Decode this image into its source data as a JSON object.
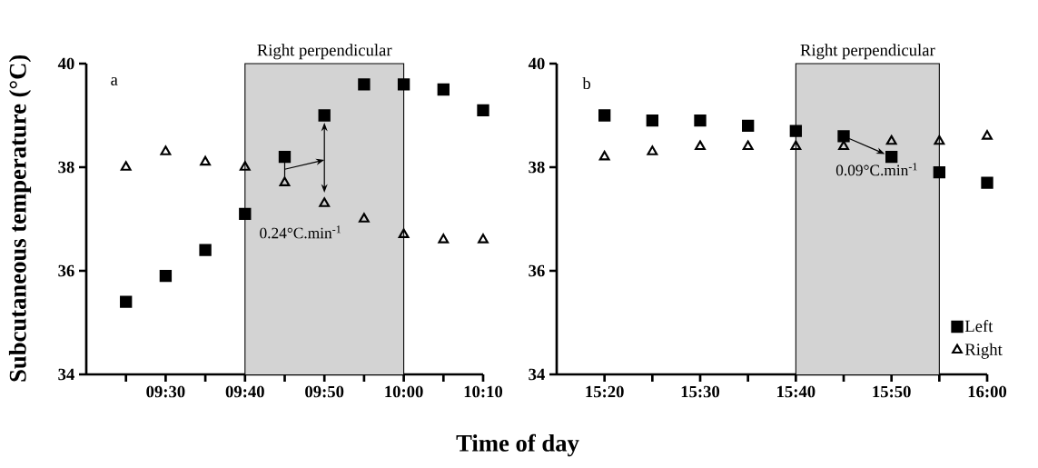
{
  "chart_data": [
    {
      "type": "scatter",
      "title": "a",
      "ylabel": "Subcutaneous temperature (°C)",
      "xlabel": "Time of day",
      "x": [
        9.416667,
        9.5,
        9.583333,
        9.666667,
        9.75,
        9.833333,
        9.916667,
        10,
        10.083333,
        10.166667
      ],
      "series": [
        {
          "color": "#000000",
          "marker": "square",
          "values": [
            35.4,
            35.9,
            36.4,
            37.1,
            38.2,
            39.0,
            39.6,
            39.6,
            39.5,
            39.1
          ]
        },
        {
          "color": "#000000",
          "marker": "triangle",
          "values": [
            38.0,
            38.3,
            38.1,
            38.0,
            37.7,
            37.3,
            37.0,
            36.7,
            36.6,
            36.6
          ]
        }
      ],
      "xlim": [
        9.333333,
        10.166667
      ],
      "ylim": [
        34,
        40
      ],
      "xticks": [
        {
          "value": 9.416667,
          "label": null
        },
        {
          "value": 9.5,
          "label": "09:30"
        },
        {
          "value": 9.583333,
          "label": null
        },
        {
          "value": 9.666667,
          "label": "09:40"
        },
        {
          "value": 9.75,
          "label": null
        },
        {
          "value": 9.833333,
          "label": "09:50"
        },
        {
          "value": 9.916667,
          "label": null
        },
        {
          "value": 10,
          "label": "10:00"
        },
        {
          "value": 10.083333,
          "label": null
        },
        {
          "value": 10.166667,
          "label": "10:10"
        }
      ],
      "yticks": [
        34,
        36,
        38,
        40
      ],
      "bands": [
        {
          "axis": "x",
          "from": 9.666667,
          "to": 10,
          "label": "Right perpendicular",
          "color": "#d3d3d3"
        }
      ],
      "annotations": [
        "0.24°C.min$^{-1}$"
      ]
    },
    {
      "type": "scatter",
      "title": "b",
      "x": [
        15.333333,
        15.416667,
        15.5,
        15.583333,
        15.666667,
        15.75,
        15.833333,
        15.916667,
        16
      ],
      "series": [
        {
          "name": "Left",
          "color": "#000000",
          "marker": "square",
          "values": [
            39.0,
            38.9,
            38.9,
            38.8,
            38.7,
            38.6,
            38.2,
            37.9,
            37.7
          ]
        },
        {
          "name": "Right",
          "color": "#000000",
          "marker": "triangle",
          "values": [
            38.2,
            38.3,
            38.4,
            38.4,
            38.4,
            38.4,
            38.5,
            38.5,
            38.6
          ]
        }
      ],
      "xlim": [
        15.25,
        16
      ],
      "ylim": [
        34,
        40
      ],
      "xticks": [
        {
          "value": 15.333333,
          "label": "15:20"
        },
        {
          "value": 15.416667,
          "label": null
        },
        {
          "value": 15.5,
          "label": "15:30"
        },
        {
          "value": 15.583333,
          "label": null
        },
        {
          "value": 15.666667,
          "label": "15:40"
        },
        {
          "value": 15.75,
          "label": null
        },
        {
          "value": 15.833333,
          "label": "15:50"
        },
        {
          "value": 15.916667,
          "label": null
        },
        {
          "value": 16,
          "label": "16:00"
        }
      ],
      "yticks": [
        34,
        36,
        38,
        40
      ],
      "bands": [
        {
          "axis": "x",
          "from": 15.666667,
          "to": 15.916667,
          "label": "Right perpendicular",
          "color": "#d3d3d3"
        }
      ],
      "annotations": [
        {
          "text": "0.09°C.min$^{-1}$",
          "x": 15.833333,
          "y": 38.2
        }
      ],
      "legend": "bottom right"
    }
  ]
}
